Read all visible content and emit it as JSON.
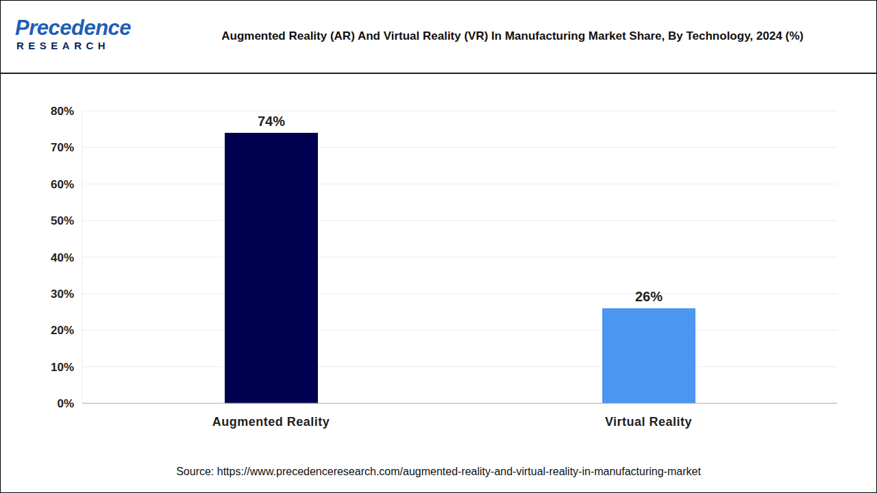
{
  "logo": {
    "name": "Precedence",
    "tagline": "RESEARCH"
  },
  "chart_data": {
    "type": "bar",
    "title": "Augmented Reality (AR) And Virtual Reality (VR) In Manufacturing Market Share, By Technology, 2024 (%)",
    "categories": [
      "Augmented Reality",
      "Virtual Reality"
    ],
    "values": [
      74,
      26
    ],
    "value_labels": [
      "74%",
      "26%"
    ],
    "colors": [
      "#000050",
      "#4a96f0"
    ],
    "ylim": [
      0,
      80
    ],
    "yticks": [
      {
        "value": 0,
        "label": "0%"
      },
      {
        "value": 10,
        "label": "10%"
      },
      {
        "value": 20,
        "label": "20%"
      },
      {
        "value": 30,
        "label": "30%"
      },
      {
        "value": 40,
        "label": "40%"
      },
      {
        "value": 50,
        "label": "50%"
      },
      {
        "value": 60,
        "label": "60%"
      },
      {
        "value": 70,
        "label": "70%"
      },
      {
        "value": 80,
        "label": "80%"
      }
    ],
    "grid": true,
    "data_labels": true,
    "annotations": [
      "Source: https://www.precedenceresearch.com/augmented-reality-and-virtual-reality-in-manufacturing-market"
    ]
  }
}
